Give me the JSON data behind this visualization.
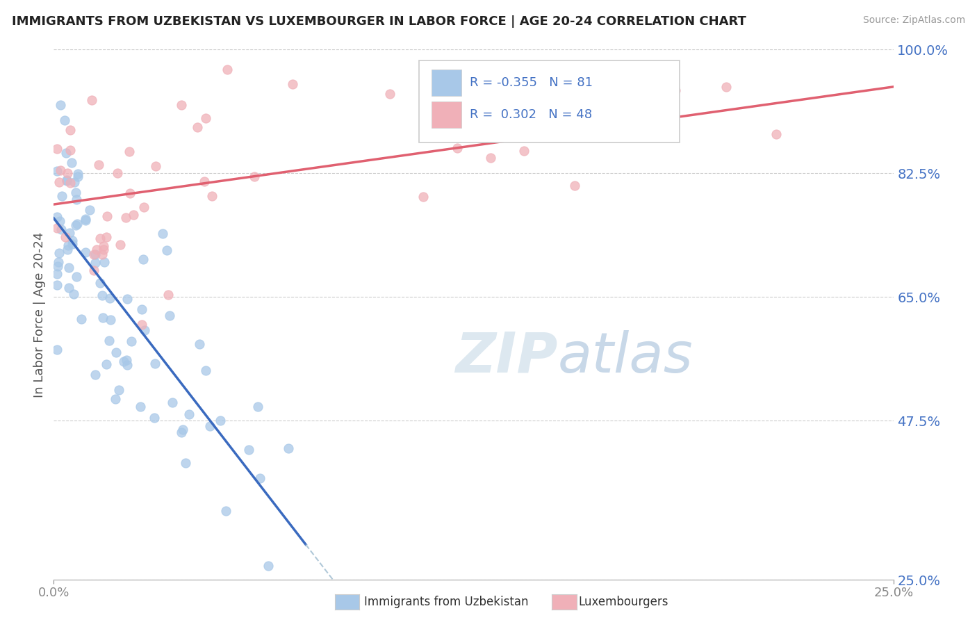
{
  "title": "IMMIGRANTS FROM UZBEKISTAN VS LUXEMBOURGER IN LABOR FORCE | AGE 20-24 CORRELATION CHART",
  "source": "Source: ZipAtlas.com",
  "ylabel_label": "In Labor Force | Age 20-24",
  "legend_label1": "Immigrants from Uzbekistan",
  "legend_label2": "Luxembourgers",
  "R1": -0.355,
  "N1": 81,
  "R2": 0.302,
  "N2": 48,
  "blue_color": "#a8c8e8",
  "blue_edge_color": "#7aaad0",
  "pink_color": "#f0b0b8",
  "pink_edge_color": "#e080a0",
  "blue_line_color": "#3a6abf",
  "pink_line_color": "#e06070",
  "dash_color": "#b0c8d8",
  "watermark_color": "#dde8f0",
  "xmin": 0.0,
  "xmax": 0.25,
  "ymin": 0.25,
  "ymax": 1.0,
  "yticks": [
    1.0,
    0.825,
    0.65,
    0.475,
    0.25
  ],
  "ytick_labels": [
    "100.0%",
    "82.5%",
    "65.0%",
    "47.5%",
    "25.0%"
  ],
  "grid_color": "#cccccc",
  "grid_style": "--"
}
